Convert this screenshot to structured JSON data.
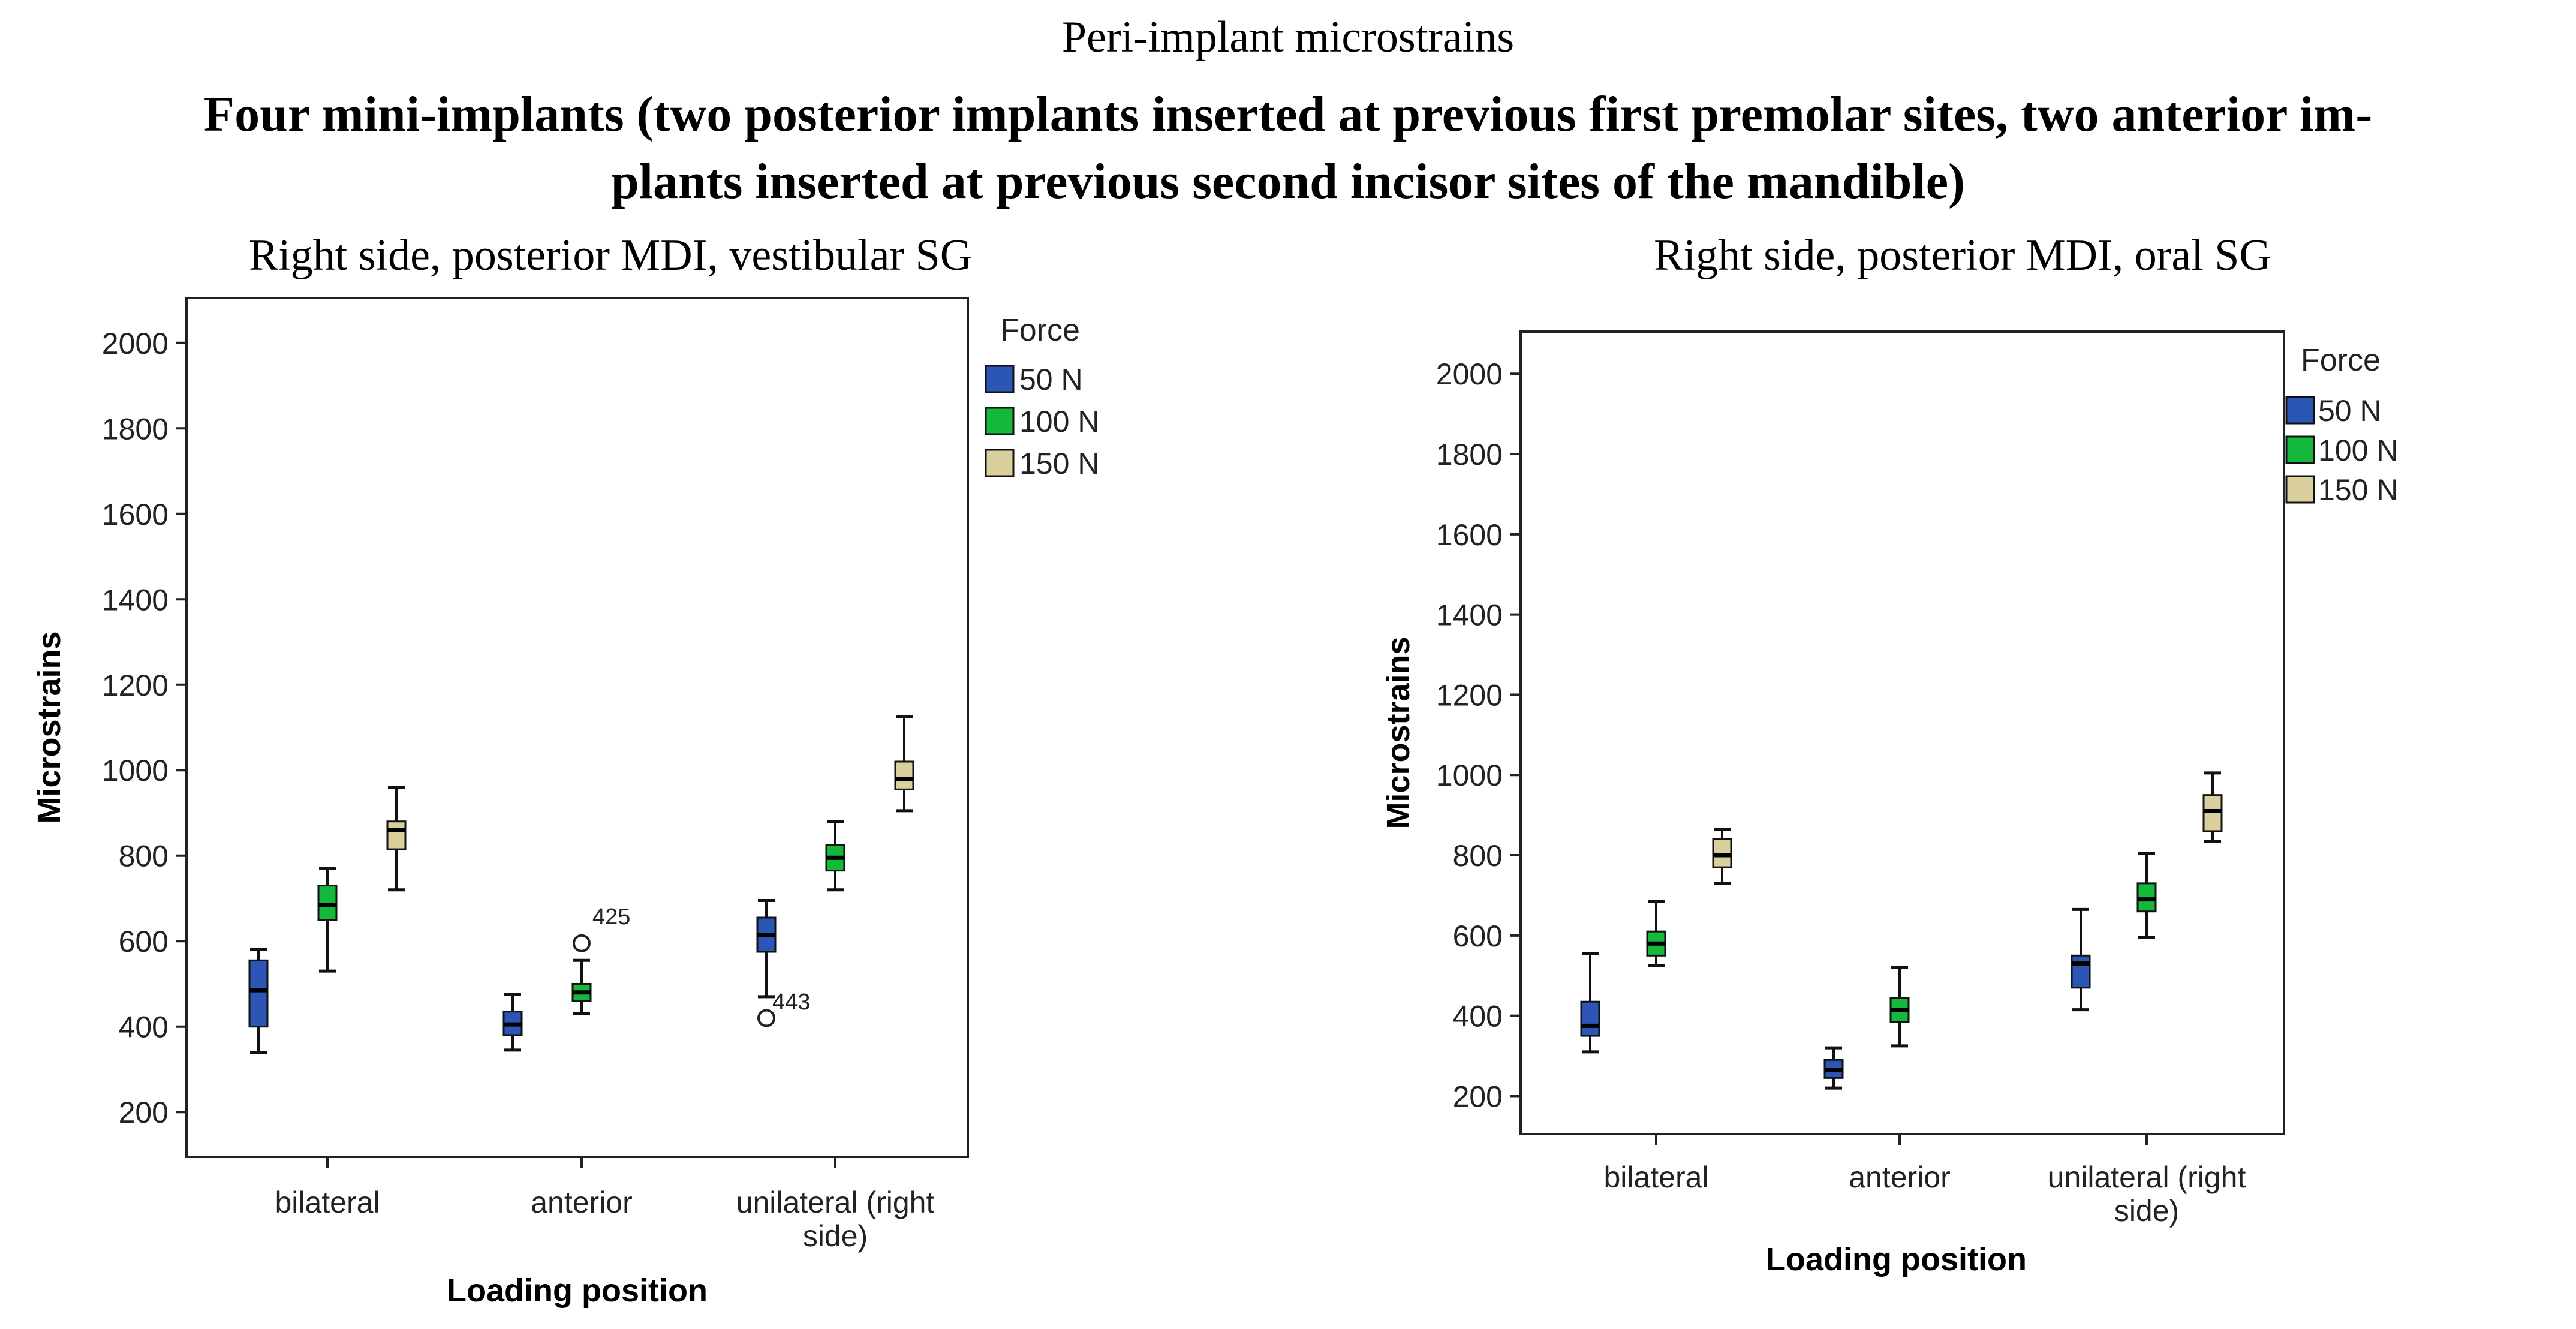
{
  "figure": {
    "suptitle": "Peri-implant microstrains",
    "title_line1": "Four mini-implants (two posterior implants inserted at previous first premolar sites, two anterior im-",
    "title_line2": "plants inserted at previous second incisor sites of the mandible)"
  },
  "colors": {
    "50 N": "#2b56b6",
    "100 N": "#14b83a",
    "150 N": "#d9d09e",
    "frame": "#222222"
  },
  "chart_data": [
    {
      "type": "boxplot",
      "title": "Right side, posterior MDI, vestibular SG",
      "xlabel": "Loading position",
      "ylabel": "Microstrains",
      "categories": [
        "bilateral",
        "anterior",
        "unilateral  (right side)"
      ],
      "category_lines": [
        [
          "bilateral"
        ],
        [
          "anterior"
        ],
        [
          "unilateral  (right",
          "side)"
        ]
      ],
      "yticks": [
        200,
        400,
        600,
        800,
        1000,
        1200,
        1400,
        1600,
        1800,
        2000
      ],
      "ylim": [
        95,
        2105
      ],
      "legend_title": "Force",
      "legend_position": "top-right",
      "series": [
        {
          "name": "50 N",
          "boxes": [
            {
              "min": 340,
              "q1": 400,
              "median": 485,
              "q3": 555,
              "max": 580
            },
            {
              "min": 345,
              "q1": 380,
              "median": 405,
              "q3": 435,
              "max": 475
            },
            {
              "min": 470,
              "q1": 575,
              "median": 615,
              "q3": 655,
              "max": 695
            }
          ]
        },
        {
          "name": "100 N",
          "boxes": [
            {
              "min": 530,
              "q1": 650,
              "median": 685,
              "q3": 730,
              "max": 770
            },
            {
              "min": 430,
              "q1": 460,
              "median": 480,
              "q3": 500,
              "max": 555
            },
            {
              "min": 720,
              "q1": 765,
              "median": 795,
              "q3": 825,
              "max": 880
            }
          ]
        },
        {
          "name": "150 N",
          "boxes": [
            {
              "min": 720,
              "q1": 815,
              "median": 860,
              "q3": 880,
              "max": 960
            },
            null,
            {
              "min": 905,
              "q1": 955,
              "median": 980,
              "q3": 1020,
              "max": 1125
            }
          ]
        }
      ],
      "outliers": [
        {
          "category": "anterior",
          "series": "100 N",
          "value": 595,
          "label": "425"
        },
        {
          "category": "unilateral  (right side)",
          "series": "50 N",
          "value": 420,
          "label": "443"
        }
      ]
    },
    {
      "type": "boxplot",
      "title": "Right side, posterior MDI, oral SG",
      "xlabel": "Loading position",
      "ylabel": "Microstrains",
      "categories": [
        "bilateral",
        "anterior",
        "unilateral  (right side)"
      ],
      "category_lines": [
        [
          "bilateral"
        ],
        [
          "anterior"
        ],
        [
          "unilateral  (right",
          "side)"
        ]
      ],
      "yticks": [
        200,
        400,
        600,
        800,
        1000,
        1200,
        1400,
        1600,
        1800,
        2000
      ],
      "ylim": [
        105,
        2105
      ],
      "legend_title": "Force",
      "legend_position": "top-right",
      "series": [
        {
          "name": "50 N",
          "boxes": [
            {
              "min": 310,
              "q1": 350,
              "median": 375,
              "q3": 435,
              "max": 555
            },
            {
              "min": 220,
              "q1": 245,
              "median": 265,
              "q3": 290,
              "max": 320
            },
            {
              "min": 415,
              "q1": 470,
              "median": 530,
              "q3": 550,
              "max": 665
            }
          ]
        },
        {
          "name": "100 N",
          "boxes": [
            {
              "min": 525,
              "q1": 550,
              "median": 580,
              "q3": 610,
              "max": 685
            },
            {
              "min": 325,
              "q1": 385,
              "median": 415,
              "q3": 445,
              "max": 520
            },
            {
              "min": 595,
              "q1": 660,
              "median": 690,
              "q3": 730,
              "max": 805
            }
          ]
        },
        {
          "name": "150 N",
          "boxes": [
            {
              "min": 730,
              "q1": 770,
              "median": 800,
              "q3": 840,
              "max": 865
            },
            null,
            {
              "min": 835,
              "q1": 860,
              "median": 910,
              "q3": 950,
              "max": 1005
            }
          ]
        }
      ],
      "outliers": []
    }
  ]
}
